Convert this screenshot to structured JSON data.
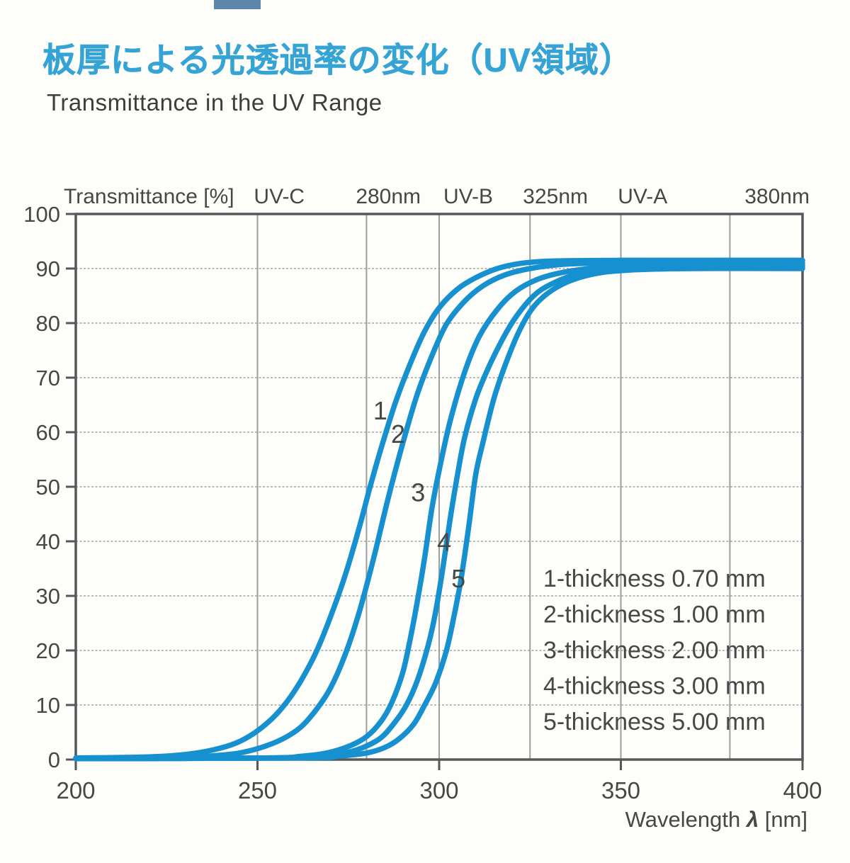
{
  "header": {
    "title_ja": "板厚による光透過率の変化（UV領域）",
    "subtitle_en": "Transmittance in the UV Range",
    "title_color": "#35a4d4"
  },
  "chart_data": {
    "type": "line",
    "title": "Transmittance in the UV Range",
    "x_axis": {
      "label": "Wavelength λ [nm]",
      "min": 200,
      "max": 400,
      "ticks": [
        200,
        250,
        300,
        350,
        400
      ]
    },
    "y_axis": {
      "label": "Transmittance [%]",
      "min": 0,
      "max": 100,
      "ticks": [
        0,
        10,
        20,
        30,
        40,
        50,
        60,
        70,
        80,
        90,
        100
      ]
    },
    "grid": {
      "on": true,
      "horizontal_values": [
        10,
        20,
        30,
        40,
        50,
        60,
        70,
        80,
        90
      ],
      "vertical_wavelengths": [
        250,
        280,
        300,
        325,
        350,
        380
      ]
    },
    "top_labels": [
      {
        "text": "Transmittance [%]",
        "nm": null,
        "align": "left"
      },
      {
        "text": "UV-C",
        "nm": 256
      },
      {
        "text": "280nm",
        "nm": 286
      },
      {
        "text": "UV-B",
        "nm": 308
      },
      {
        "text": "325nm",
        "nm": 332
      },
      {
        "text": "UV-A",
        "nm": 356
      },
      {
        "text": "380nm",
        "nm": 393
      }
    ],
    "series": [
      {
        "name": "1",
        "thickness_mm": "0.70",
        "points": [
          [
            200,
            0.3
          ],
          [
            215,
            0.4
          ],
          [
            224,
            0.6
          ],
          [
            231,
            1
          ],
          [
            238,
            1.8
          ],
          [
            244,
            3
          ],
          [
            249,
            4.8
          ],
          [
            254,
            7.5
          ],
          [
            258,
            10.5
          ],
          [
            262,
            14.5
          ],
          [
            266,
            19.5
          ],
          [
            270,
            26
          ],
          [
            274,
            33.5
          ],
          [
            278,
            42.5
          ],
          [
            281,
            50
          ],
          [
            284,
            57
          ],
          [
            288,
            65.5
          ],
          [
            292,
            72.5
          ],
          [
            296,
            78.5
          ],
          [
            300,
            82.8
          ],
          [
            305,
            86.2
          ],
          [
            310,
            88.3
          ],
          [
            316,
            90
          ],
          [
            323,
            91
          ],
          [
            332,
            91.4
          ],
          [
            350,
            91.5
          ],
          [
            400,
            91.5
          ]
        ]
      },
      {
        "name": "2",
        "thickness_mm": "1.00",
        "points": [
          [
            200,
            0.2
          ],
          [
            228,
            0.35
          ],
          [
            238,
            0.7
          ],
          [
            245,
            1.2
          ],
          [
            251,
            2.2
          ],
          [
            257,
            3.8
          ],
          [
            262,
            6
          ],
          [
            266,
            9
          ],
          [
            270,
            13
          ],
          [
            274,
            19
          ],
          [
            278,
            27
          ],
          [
            282,
            37
          ],
          [
            286,
            48
          ],
          [
            290,
            58
          ],
          [
            294,
            67
          ],
          [
            298,
            74
          ],
          [
            302,
            79.8
          ],
          [
            307,
            84
          ],
          [
            312,
            86.8
          ],
          [
            318,
            88.8
          ],
          [
            325,
            90
          ],
          [
            335,
            90.8
          ],
          [
            350,
            91
          ],
          [
            400,
            91
          ]
        ]
      },
      {
        "name": "3",
        "thickness_mm": "2.00",
        "points": [
          [
            200,
            0.15
          ],
          [
            252,
            0.3
          ],
          [
            262,
            0.6
          ],
          [
            269,
            1.2
          ],
          [
            275,
            2.4
          ],
          [
            280,
            4.2
          ],
          [
            284,
            7
          ],
          [
            287,
            10.5
          ],
          [
            290,
            16
          ],
          [
            292,
            22
          ],
          [
            294,
            29
          ],
          [
            296,
            37
          ],
          [
            298,
            46
          ],
          [
            300,
            53
          ],
          [
            303,
            62
          ],
          [
            307,
            71
          ],
          [
            311,
            77.5
          ],
          [
            316,
            82.5
          ],
          [
            321,
            85.8
          ],
          [
            327,
            88
          ],
          [
            334,
            89.3
          ],
          [
            343,
            90.1
          ],
          [
            356,
            90.5
          ],
          [
            400,
            90.6
          ]
        ]
      },
      {
        "name": "4",
        "thickness_mm": "3.00",
        "points": [
          [
            200,
            0.15
          ],
          [
            257,
            0.3
          ],
          [
            267,
            0.6
          ],
          [
            274,
            1.2
          ],
          [
            279,
            2.2
          ],
          [
            284,
            4
          ],
          [
            288,
            7
          ],
          [
            291,
            10
          ],
          [
            294,
            14.5
          ],
          [
            297,
            21
          ],
          [
            299,
            27
          ],
          [
            301,
            35
          ],
          [
            303,
            44
          ],
          [
            305,
            52
          ],
          [
            307,
            59
          ],
          [
            310,
            66
          ],
          [
            313,
            71
          ],
          [
            317,
            76.5
          ],
          [
            321,
            81
          ],
          [
            326,
            85
          ],
          [
            331,
            87.2
          ],
          [
            338,
            89
          ],
          [
            347,
            90
          ],
          [
            360,
            90.3
          ],
          [
            400,
            90.3
          ]
        ]
      },
      {
        "name": "5",
        "thickness_mm": "5.00",
        "points": [
          [
            200,
            0.15
          ],
          [
            262,
            0.3
          ],
          [
            272,
            0.6
          ],
          [
            280,
            1.2
          ],
          [
            285,
            2.2
          ],
          [
            289,
            3.8
          ],
          [
            293,
            6.5
          ],
          [
            296,
            10
          ],
          [
            299,
            14
          ],
          [
            302,
            20
          ],
          [
            304,
            26
          ],
          [
            306,
            33
          ],
          [
            308,
            42
          ],
          [
            310,
            52
          ],
          [
            312,
            58
          ],
          [
            315,
            66
          ],
          [
            318,
            72
          ],
          [
            322,
            78.5
          ],
          [
            326,
            83
          ],
          [
            331,
            86
          ],
          [
            337,
            88
          ],
          [
            345,
            89.3
          ],
          [
            355,
            89.8
          ],
          [
            370,
            90
          ],
          [
            400,
            90
          ]
        ]
      }
    ],
    "curve_number_labels": [
      {
        "text": "1",
        "nm": 283.8,
        "value": 63.9
      },
      {
        "text": "2",
        "nm": 288.7,
        "value": 59.6
      },
      {
        "text": "3",
        "nm": 294.2,
        "value": 48.9
      },
      {
        "text": "4",
        "nm": 301.4,
        "value": 39.8
      },
      {
        "text": "5",
        "nm": 305.3,
        "value": 33.1
      }
    ],
    "legend": {
      "position": "inside-bottom-right",
      "entries": [
        "1-thickness 0.70 mm",
        "2-thickness 1.00 mm",
        "3-thickness 2.00 mm",
        "4-thickness 3.00 mm",
        "5-thickness 5.00 mm"
      ]
    },
    "colors": {
      "curve": "#1790d0",
      "grid_horizontal": "#adb1af",
      "grid_vertical": "#9b9f9f",
      "axis_frame": "#55575a",
      "text": "#474747"
    }
  }
}
